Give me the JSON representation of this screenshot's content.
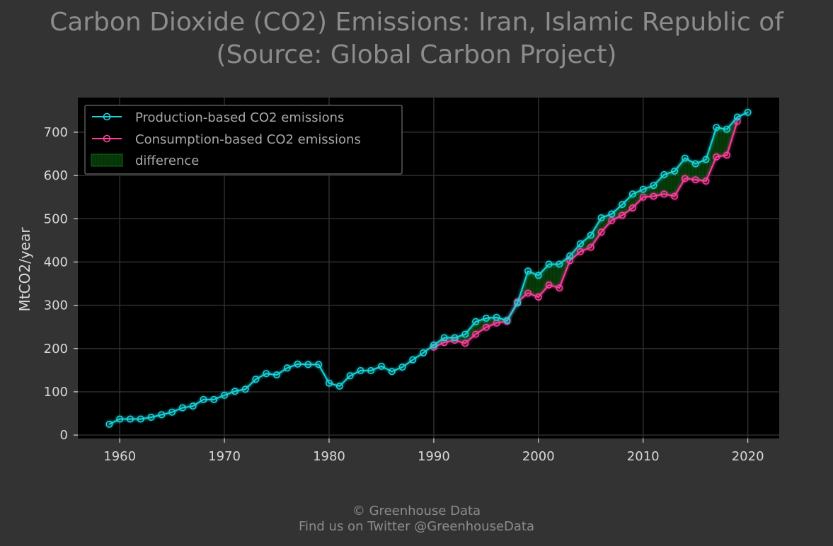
{
  "title_line1": "Carbon Dioxide (CO2) Emissions: Iran, Islamic Republic of",
  "title_line2": "(Source: Global Carbon Project)",
  "footer": {
    "line1": "© Greenhouse Data",
    "line2": "Find us on Twitter @GreenhouseData"
  },
  "colors": {
    "page_bg": "#333333",
    "plot_bg": "#000000",
    "grid": "#2e2e2e",
    "text": "#d8d8d8",
    "muted_text": "#8c8c8c",
    "production": "#18d6dc",
    "consumption": "#ff3f9f",
    "difference": "#0b6b10"
  },
  "chart_data": {
    "type": "line",
    "title": "Carbon Dioxide (CO2) Emissions: Iran, Islamic Republic of (Source: Global Carbon Project)",
    "xlabel": "",
    "ylabel": "MtCO2/year",
    "xlim": [
      1956,
      2023
    ],
    "ylim": [
      -8,
      780
    ],
    "x_ticks": [
      1960,
      1970,
      1980,
      1990,
      2000,
      2010,
      2020
    ],
    "y_ticks": [
      0,
      100,
      200,
      300,
      400,
      500,
      600,
      700
    ],
    "grid": true,
    "legend_position": "top-left",
    "legend": [
      {
        "label": "Production-based CO2 emissions",
        "kind": "line",
        "color": "#18d6dc"
      },
      {
        "label": "Consumption-based CO2 emissions",
        "kind": "line",
        "color": "#ff3f9f"
      },
      {
        "label": "difference",
        "kind": "fill",
        "color": "#0b6b10"
      }
    ],
    "series": [
      {
        "name": "Production-based CO2 emissions",
        "color": "#18d6dc",
        "x": [
          1959,
          1960,
          1961,
          1962,
          1963,
          1964,
          1965,
          1966,
          1967,
          1968,
          1969,
          1970,
          1971,
          1972,
          1973,
          1974,
          1975,
          1976,
          1977,
          1978,
          1979,
          1980,
          1981,
          1982,
          1983,
          1984,
          1985,
          1986,
          1987,
          1988,
          1989,
          1990,
          1991,
          1992,
          1993,
          1994,
          1995,
          1996,
          1997,
          1998,
          1999,
          2000,
          2001,
          2002,
          2003,
          2004,
          2005,
          2006,
          2007,
          2008,
          2009,
          2010,
          2011,
          2012,
          2013,
          2014,
          2015,
          2016,
          2017,
          2018,
          2019,
          2020
        ],
        "values": [
          25,
          37,
          37,
          37,
          41,
          47,
          53,
          63,
          67,
          82,
          82,
          92,
          101,
          106,
          129,
          142,
          139,
          155,
          164,
          163,
          163,
          120,
          113,
          137,
          149,
          149,
          159,
          147,
          157,
          174,
          190,
          208,
          225,
          225,
          233,
          262,
          270,
          272,
          265,
          305,
          379,
          369,
          395,
          395,
          414,
          442,
          462,
          502,
          511,
          533,
          557,
          568,
          577,
          602,
          610,
          640,
          627,
          637,
          711,
          707,
          735,
          746
        ]
      },
      {
        "name": "Consumption-based CO2 emissions",
        "color": "#ff3f9f",
        "x": [
          1990,
          1991,
          1992,
          1993,
          1994,
          1995,
          1996,
          1997,
          1998,
          1999,
          2000,
          2001,
          2002,
          2003,
          2004,
          2005,
          2006,
          2007,
          2008,
          2009,
          2010,
          2011,
          2012,
          2013,
          2014,
          2015,
          2016,
          2017,
          2018,
          2019
        ],
        "values": [
          203,
          214,
          219,
          212,
          233,
          249,
          259,
          263,
          308,
          328,
          319,
          347,
          340,
          403,
          424,
          434,
          469,
          496,
          508,
          525,
          550,
          552,
          557,
          552,
          593,
          590,
          587,
          643,
          647,
          725
        ]
      }
    ]
  }
}
